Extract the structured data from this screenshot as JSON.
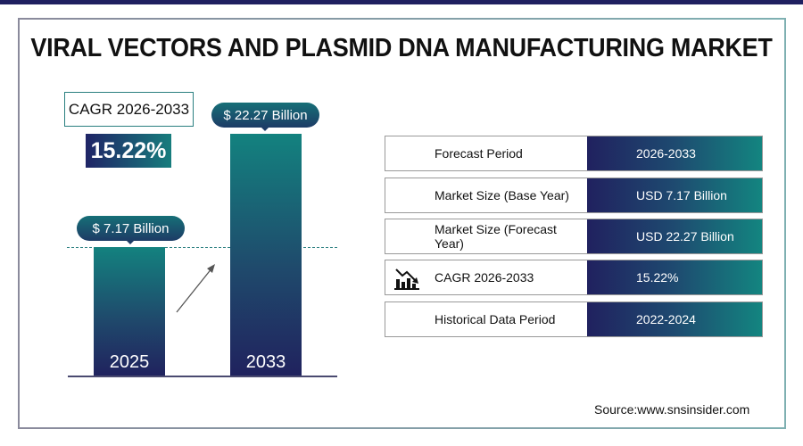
{
  "title": "VIRAL VECTORS AND PLASMID DNA MANUFACTURING MARKET",
  "cagr_label": "CAGR 2026-2033",
  "cagr_value": "15.22%",
  "chart_data": {
    "type": "bar",
    "categories": [
      "2025",
      "2033"
    ],
    "values": [
      7.17,
      22.27
    ],
    "data_labels": [
      "$ 7.17 Billion",
      "$ 22.27 Billion"
    ],
    "unit": "USD Billion",
    "colors": [
      "#13827f",
      "#20225e"
    ]
  },
  "table": [
    {
      "label": "Forecast Period",
      "value": "2026-2033"
    },
    {
      "label": "Market Size (Base Year)",
      "value": "USD 7.17 Billion"
    },
    {
      "label": "Market Size (Forecast Year)",
      "value": "USD 22.27 Billion"
    },
    {
      "label": "CAGR 2026-2033",
      "value": "15.22%",
      "icon": "chart-decline-icon"
    },
    {
      "label": "Historical Data Period",
      "value": "2022-2024"
    }
  ],
  "source": "Source:www.snsinsider.com"
}
